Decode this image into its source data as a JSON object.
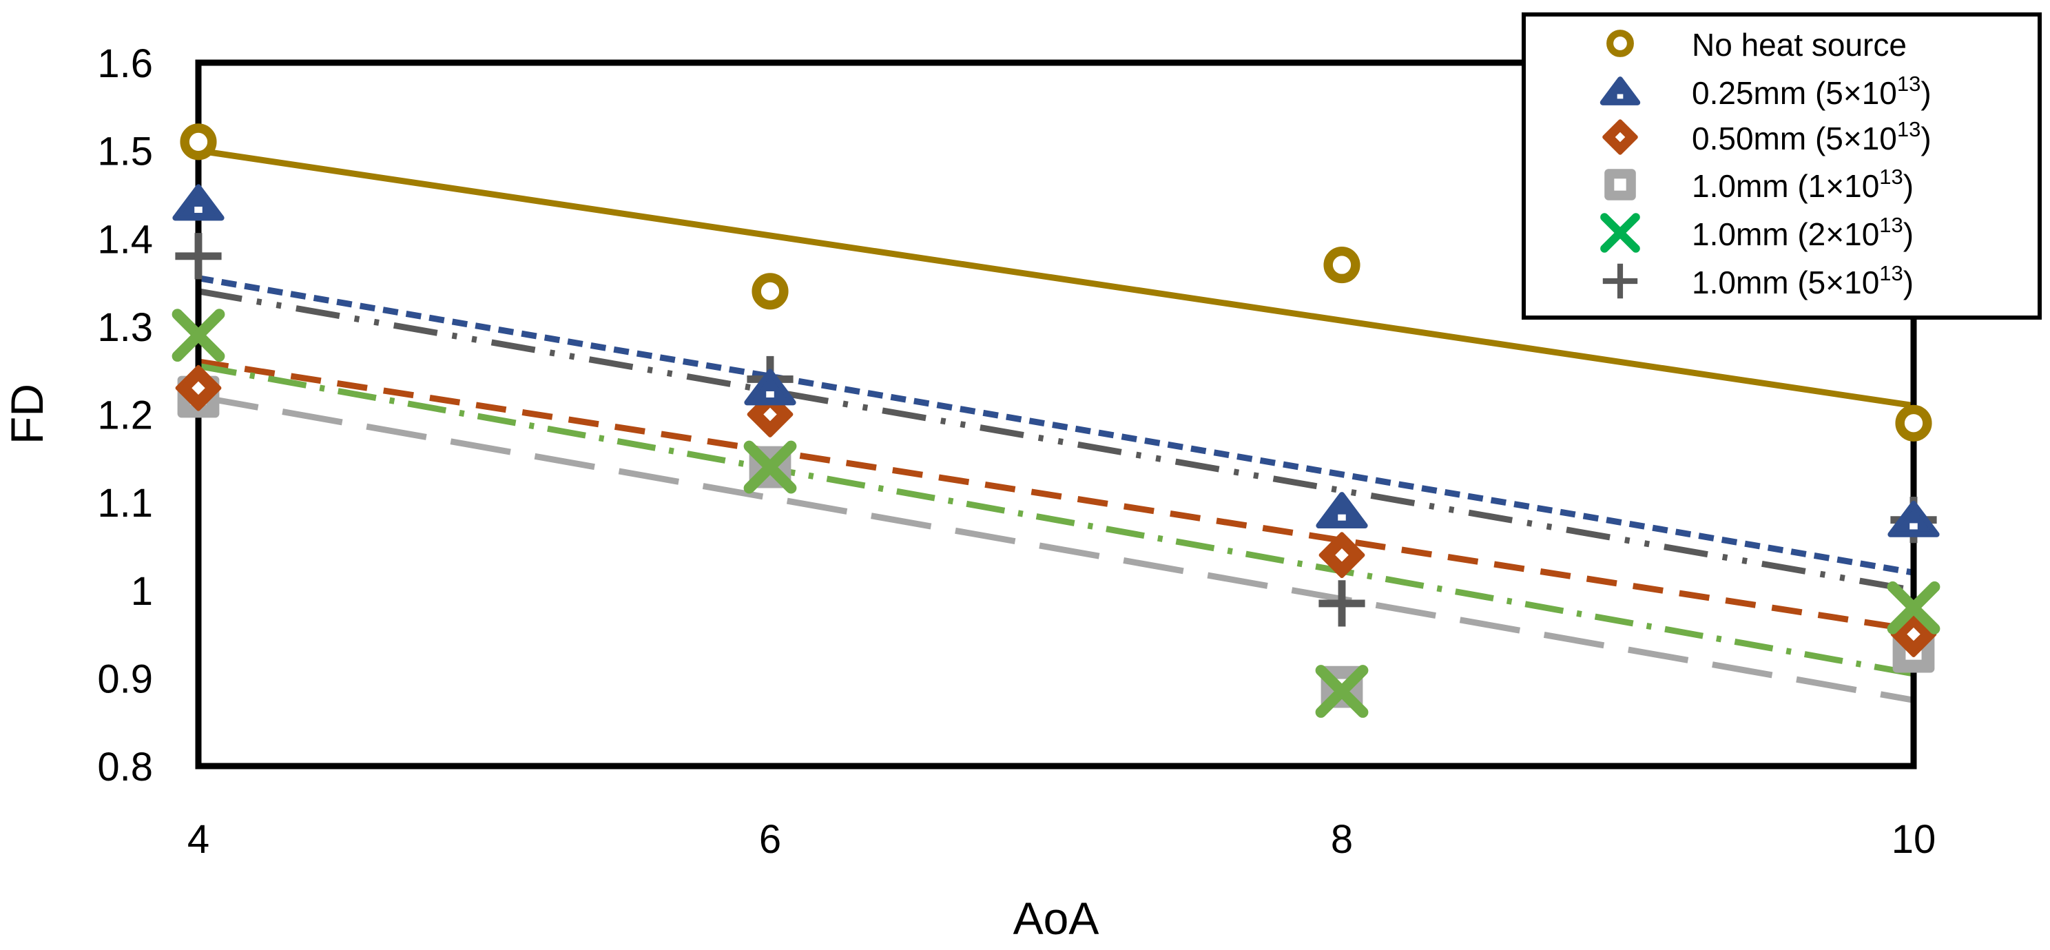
{
  "chart_data": {
    "type": "scatter",
    "title": "",
    "xlabel": "AoA",
    "ylabel": "FD",
    "xlim": [
      4,
      10
    ],
    "ylim": [
      0.8,
      1.6
    ],
    "xticks": [
      4,
      6,
      8,
      10
    ],
    "yticks": [
      0.8,
      0.9,
      1,
      1.1,
      1.2,
      1.3,
      1.4,
      1.5,
      1.6
    ],
    "ytick_labels": [
      "0.8",
      "0.9",
      "1",
      "1.1",
      "1.2",
      "1.3",
      "1.4",
      "1.5",
      "1.6"
    ],
    "legend_position": "top-right",
    "series": [
      {
        "name": "No heat source",
        "legend_label": "No heat source",
        "marker": "circle",
        "color": "#A07C00",
        "line_style": "solid",
        "x": [
          4,
          6,
          8,
          10
        ],
        "y": [
          1.51,
          1.34,
          1.37,
          1.19
        ],
        "trend": [
          1.5,
          1.21
        ]
      },
      {
        "name": "0.25mm (5×10^13)",
        "legend_label": "0.25mm (5×10",
        "legend_exp": "13",
        "legend_tail": ")",
        "marker": "triangle",
        "color": "#2F4F8F",
        "line_style": "short-dash",
        "x": [
          4,
          6,
          8,
          10
        ],
        "y": [
          1.44,
          1.23,
          1.09,
          1.08
        ],
        "trend": [
          1.355,
          1.02
        ]
      },
      {
        "name": "0.50mm (5×10^13)",
        "legend_label": "0.50mm (5×10",
        "legend_exp": "13",
        "legend_tail": ")",
        "marker": "diamond",
        "color": "#B34A12",
        "line_style": "dash",
        "x": [
          4,
          6,
          8,
          10
        ],
        "y": [
          1.23,
          1.2,
          1.04,
          0.95
        ],
        "trend": [
          1.26,
          0.955
        ]
      },
      {
        "name": "1.0mm (1×10^13)",
        "legend_label": "1.0mm (1×10",
        "legend_exp": "13",
        "legend_tail": ")",
        "marker": "square",
        "color": "#A6A6A6",
        "line_style": "long-dash",
        "x": [
          4,
          6,
          8,
          10
        ],
        "y": [
          1.22,
          1.14,
          0.89,
          0.93
        ],
        "trend": [
          1.22,
          0.875
        ]
      },
      {
        "name": "1.0mm (2×10^13)",
        "legend_label": "1.0mm (2×10",
        "legend_exp": "13",
        "legend_tail": ")",
        "marker": "x",
        "color": "#70AD47",
        "legend_color": "#00B050",
        "line_style": "dash-dot",
        "x": [
          4,
          6,
          8,
          10
        ],
        "y": [
          1.29,
          1.14,
          0.885,
          0.98
        ],
        "trend": [
          1.255,
          0.905
        ]
      },
      {
        "name": "1.0mm (5×10^13)",
        "legend_label": "1.0mm (5×10",
        "legend_exp": "13",
        "legend_tail": ")",
        "marker": "plus",
        "color": "#595959",
        "line_style": "dash-dot-dot",
        "x": [
          4,
          6,
          8,
          10
        ],
        "y": [
          1.38,
          1.24,
          0.985,
          1.08
        ],
        "trend": [
          1.34,
          1.0
        ]
      }
    ]
  }
}
